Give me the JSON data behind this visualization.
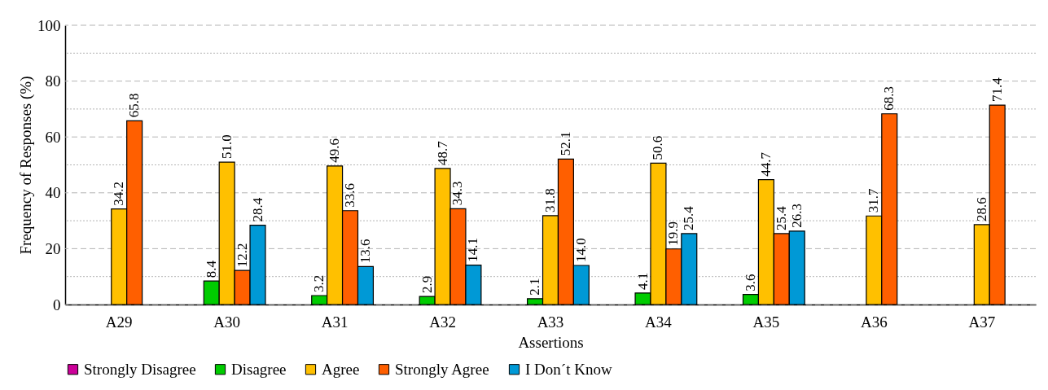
{
  "chart_data": {
    "type": "bar",
    "xlabel": "Assertions",
    "ylabel": "Frequency of Responses (%)",
    "categories": [
      "A29",
      "A30",
      "A31",
      "A32",
      "A33",
      "A34",
      "A35",
      "A36",
      "A37"
    ],
    "series": [
      {
        "name": "Strongly Disagree",
        "color": "#cc0099",
        "values": [
          null,
          null,
          null,
          null,
          null,
          null,
          null,
          null,
          null
        ]
      },
      {
        "name": "Disagree",
        "color": "#00cc00",
        "values": [
          null,
          8.4,
          3.2,
          2.9,
          2.1,
          4.1,
          3.6,
          null,
          null
        ],
        "value_labels": [
          null,
          "8.4",
          "3.2",
          "2.9",
          "2.1",
          "4.1",
          "3.6",
          null,
          null
        ]
      },
      {
        "name": "Agree",
        "color": "#ffc000",
        "values": [
          34.2,
          51.0,
          49.6,
          48.7,
          31.8,
          50.6,
          44.7,
          31.7,
          28.6
        ],
        "value_labels": [
          "34.2",
          "51.0",
          "49.6",
          "48.7",
          "31.8",
          "50.6",
          "44.7",
          "31.7",
          "28.6"
        ]
      },
      {
        "name": "Strongly Agree",
        "color": "#ff5f00",
        "values": [
          65.8,
          12.2,
          33.6,
          34.3,
          52.1,
          19.9,
          25.4,
          68.3,
          71.4
        ],
        "value_labels": [
          "65.8",
          "12.2",
          "33.6",
          "34.3",
          "52.1",
          "19.9",
          "25.4",
          "68.3",
          "71.4"
        ]
      },
      {
        "name": "I Don´t Know",
        "color": "#0099d6",
        "values": [
          null,
          28.4,
          13.6,
          14.1,
          14.0,
          25.4,
          26.3,
          null,
          null
        ],
        "value_labels": [
          null,
          "28.4",
          "13.6",
          "14.1",
          "14.0",
          "25.4",
          "26.3",
          null,
          null
        ]
      }
    ],
    "ylim": [
      0,
      100
    ],
    "yticks": [
      0,
      {
        "value": 10,
        "label": null
      },
      20,
      {
        "value": 30,
        "label": null
      },
      40,
      {
        "value": 50,
        "label": null
      },
      60,
      {
        "value": 70,
        "label": null
      },
      80,
      {
        "value": 90,
        "label": null
      },
      100
    ],
    "grid": "y",
    "legend": "bottom"
  }
}
